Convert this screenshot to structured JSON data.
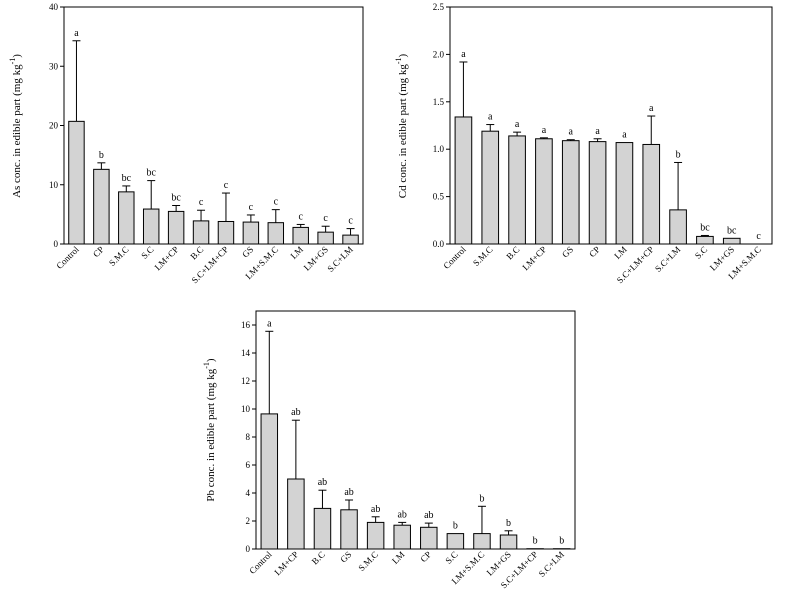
{
  "chart_data": [
    {
      "id": "as",
      "type": "bar",
      "ylabel": "As conc. in edible part (mg kg",
      "ylabel_sup": "-1",
      "ylabel_close": ")",
      "ylim": [
        0,
        40
      ],
      "yticks": [
        0,
        10,
        20,
        30,
        40
      ],
      "categories": [
        "Control",
        "CP",
        "S.M.C",
        "S.C",
        "LM+CP",
        "B.C",
        "S.C+LM+CP",
        "GS",
        "LM+S.M.C",
        "LM",
        "LM+GS",
        "S.C+LM"
      ],
      "values": [
        20.7,
        12.6,
        8.8,
        5.9,
        5.5,
        3.9,
        3.8,
        3.7,
        3.6,
        2.8,
        2.0,
        1.5
      ],
      "errors": [
        13.6,
        1.1,
        1.0,
        4.8,
        1.0,
        1.8,
        4.8,
        1.2,
        2.2,
        0.5,
        1.0,
        1.1
      ],
      "letters": [
        "a",
        "b",
        "bc",
        "bc",
        "bc",
        "c",
        "c",
        "c",
        "c",
        "c",
        "c",
        "c"
      ]
    },
    {
      "id": "cd",
      "type": "bar",
      "ylabel": "Cd conc. in edible part (mg kg",
      "ylabel_sup": "-1",
      "ylabel_close": ")",
      "ylim": [
        0,
        2.5
      ],
      "yticks": [
        "0.0",
        "0.5",
        "1.0",
        "1.5",
        "2.0",
        "2.5"
      ],
      "categories": [
        "Control",
        "S.M.C",
        "B.C",
        "LM+CP",
        "GS",
        "CP",
        "LM",
        "S.C+LM+CP",
        "S.C+LM",
        "S.C",
        "LM+GS",
        "LM+S.M.C"
      ],
      "values": [
        1.34,
        1.19,
        1.14,
        1.11,
        1.09,
        1.08,
        1.07,
        1.05,
        0.36,
        0.08,
        0.06,
        0.0
      ],
      "errors": [
        0.58,
        0.07,
        0.04,
        0.01,
        0.01,
        0.03,
        0.0,
        0.3,
        0.5,
        0.01,
        0.0,
        0.0
      ],
      "letters": [
        "a",
        "a",
        "a",
        "a",
        "a",
        "a",
        "a",
        "a",
        "b",
        "bc",
        "bc",
        "c"
      ]
    },
    {
      "id": "pb",
      "type": "bar",
      "ylabel": "Pb conc. in edible part (mg kg",
      "ylabel_sup": "-1",
      "ylabel_close": ")",
      "ylim": [
        0,
        17
      ],
      "yticks": [
        0,
        2,
        4,
        6,
        8,
        10,
        12,
        14,
        16
      ],
      "categories": [
        "Control",
        "LM+CP",
        "B.C",
        "GS",
        "S.M.C",
        "LM",
        "CP",
        "S.C",
        "LM+S.M.C",
        "LM+GS",
        "S.C+LM+CP",
        "S.C+LM"
      ],
      "values": [
        9.65,
        5.0,
        2.9,
        2.8,
        1.9,
        1.7,
        1.55,
        1.1,
        1.1,
        1.0,
        0.02,
        0.02
      ],
      "errors": [
        5.9,
        4.2,
        1.3,
        0.7,
        0.4,
        0.2,
        0.3,
        0.0,
        1.95,
        0.3,
        0.0,
        0.0
      ],
      "letters": [
        "a",
        "ab",
        "ab",
        "ab",
        "ab",
        "ab",
        "ab",
        "b",
        "b",
        "b",
        "b",
        "b"
      ]
    }
  ]
}
